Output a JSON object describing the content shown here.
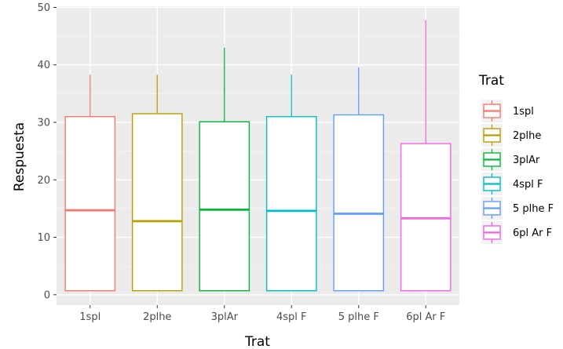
{
  "chart_data": {
    "type": "boxplot",
    "title": "",
    "xlabel": "Trat",
    "ylabel": "Respuesta",
    "ylim": [
      -1.8,
      50.2
    ],
    "yticks": [
      0,
      10,
      20,
      30,
      40,
      50
    ],
    "grid": true,
    "legend_position": "right",
    "legend_title": "Trat",
    "categories": [
      "1spl",
      "2plhe",
      "3plAr",
      "4spl F",
      "5 plhe F",
      "6pl Ar F"
    ],
    "boxes": [
      {
        "name": "1spl",
        "min": 0.7,
        "q1": 0.7,
        "median": 14.7,
        "q3": 31.0,
        "max": 38.3,
        "color": "#F8766D"
      },
      {
        "name": "2plhe",
        "min": 0.7,
        "q1": 0.7,
        "median": 12.8,
        "q3": 31.5,
        "max": 38.3,
        "color": "#B79F00"
      },
      {
        "name": "3plAr",
        "min": 0.7,
        "q1": 0.7,
        "median": 14.8,
        "q3": 30.1,
        "max": 43.0,
        "color": "#00BA38"
      },
      {
        "name": "4spl F",
        "min": 0.7,
        "q1": 0.7,
        "median": 14.6,
        "q3": 31.0,
        "max": 38.3,
        "color": "#00BFC4"
      },
      {
        "name": "5 plhe F",
        "min": 0.7,
        "q1": 0.7,
        "median": 14.1,
        "q3": 31.3,
        "max": 39.6,
        "color": "#619CFF"
      },
      {
        "name": "6pl Ar F",
        "min": 0.7,
        "q1": 0.7,
        "median": 13.3,
        "q3": 26.3,
        "max": 47.8,
        "color": "#F564E3"
      }
    ],
    "colors": {
      "panel_background": "#EBEBEB",
      "grid_major": "#FFFFFF",
      "grid_minor": "#F4F4F4",
      "tick_text": "#4D4D4D"
    }
  }
}
